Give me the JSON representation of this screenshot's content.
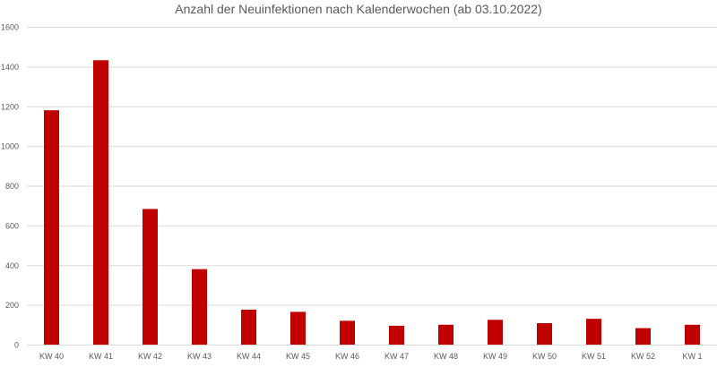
{
  "chart_data": {
    "type": "bar",
    "title": "Anzahl der Neuinfektionen nach Kalenderwochen (ab 03.10.2022)",
    "xlabel": "",
    "ylabel": "",
    "categories": [
      "KW 40",
      "KW 41",
      "KW 42",
      "KW 43",
      "KW 44",
      "KW 45",
      "KW 46",
      "KW 47",
      "KW 48",
      "KW 49",
      "KW 50",
      "KW 51",
      "KW 52",
      "KW 1"
    ],
    "values": [
      1180,
      1432,
      683,
      380,
      176,
      165,
      120,
      95,
      100,
      125,
      108,
      130,
      83,
      100
    ],
    "ylim": [
      0,
      1600
    ],
    "yticks": [
      0,
      200,
      400,
      600,
      800,
      1000,
      1200,
      1400,
      1600
    ],
    "grid": true,
    "legend": "none",
    "bar_color": "#c00000",
    "grid_color": "#d9d9d9",
    "text_color": "#595959"
  }
}
